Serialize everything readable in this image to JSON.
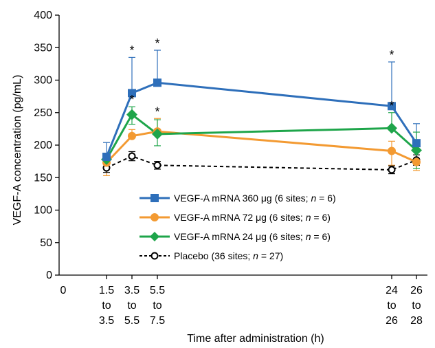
{
  "chart_data": {
    "type": "line",
    "title": "",
    "xlabel": "Time after administration (h)",
    "ylabel": "VEGF-A concentration (pg/mL)",
    "ylim": [
      0,
      400
    ],
    "yticks": [
      "0",
      "50",
      "100",
      "150",
      "200",
      "250",
      "300",
      "350",
      "400"
    ],
    "x": [
      0,
      1.5,
      3.5,
      5.5,
      24,
      26
    ],
    "xticks": [
      {
        "x": 0,
        "lines": [
          "0"
        ]
      },
      {
        "x": 1.5,
        "lines": [
          "1.5",
          "to",
          "3.5"
        ]
      },
      {
        "x": 3.5,
        "lines": [
          "3.5",
          "to",
          "5.5"
        ]
      },
      {
        "x": 5.5,
        "lines": [
          "5.5",
          "to",
          "7.5"
        ]
      },
      {
        "x": 24,
        "lines": [
          "24",
          "to",
          "26"
        ]
      },
      {
        "x": 26,
        "lines": [
          "26",
          "to",
          "28"
        ]
      }
    ],
    "series": [
      {
        "name": "VEGF-A mRNA 360 μg (6 sites; n = 6)",
        "color": "#2e6fba",
        "marker": "square",
        "x": [
          1.5,
          3.5,
          5.5,
          24,
          26
        ],
        "values": [
          182,
          280,
          296,
          260,
          203
        ],
        "error_up": [
          22,
          55,
          50,
          68,
          30
        ],
        "error_down": [
          0,
          0,
          0,
          0,
          0
        ],
        "significant": [
          false,
          true,
          true,
          true,
          false
        ]
      },
      {
        "name": "VEGF-A mRNA 72 μg (6 sites; n = 6)",
        "color": "#f39a32",
        "marker": "circle",
        "x": [
          1.5,
          3.5,
          5.5,
          24,
          26
        ],
        "values": [
          173,
          214,
          221,
          191,
          174
        ],
        "error_up": [
          0,
          10,
          20,
          15,
          0
        ],
        "error_down": [
          20,
          0,
          0,
          22,
          13
        ],
        "significant": [
          false,
          false,
          true,
          false,
          false
        ]
      },
      {
        "name": "VEGF-A mRNA 24 μg (6 sites; n = 6)",
        "color": "#1ea54a",
        "marker": "diamond",
        "x": [
          1.5,
          3.5,
          5.5,
          24,
          26
        ],
        "values": [
          178,
          247,
          217,
          226,
          192
        ],
        "error_up": [
          8,
          12,
          22,
          24,
          28
        ],
        "error_down": [
          0,
          15,
          18,
          0,
          28
        ],
        "significant": [
          false,
          true,
          false,
          true,
          false
        ]
      },
      {
        "name": "Placebo (36 sites; n = 27)",
        "color": "#000000",
        "marker": "open-circle",
        "dashed": true,
        "x": [
          1.5,
          3.5,
          5.5,
          24,
          26
        ],
        "values": [
          165,
          183,
          169,
          162,
          177
        ],
        "error_up": [
          7,
          7,
          6,
          6,
          8
        ],
        "error_down": [
          7,
          7,
          6,
          6,
          8
        ],
        "significant": [
          false,
          false,
          false,
          false,
          false
        ]
      }
    ],
    "annotation_symbol": "*",
    "legend": {
      "placement": "center",
      "entries": [
        {
          "prefix": "VEGF-A mRNA 360 μg (6 sites; ",
          "italic": "n",
          "suffix": " = 6)"
        },
        {
          "prefix": "VEGF-A mRNA 72 μg (6 sites; ",
          "italic": "n",
          "suffix": " = 6)"
        },
        {
          "prefix": "VEGF-A mRNA 24 μg (6 sites; ",
          "italic": "n",
          "suffix": " = 6)"
        },
        {
          "prefix": "Placebo (36 sites; ",
          "italic": "n",
          "suffix": " = 27)"
        }
      ]
    }
  }
}
